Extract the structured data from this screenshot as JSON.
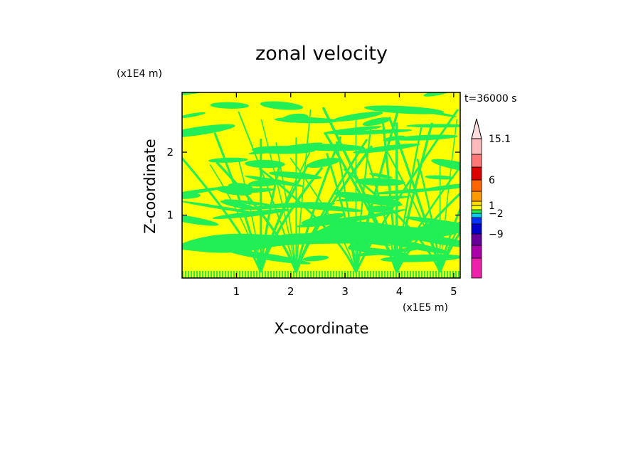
{
  "chart_data": {
    "type": "heatmap",
    "title": "zonal velocity",
    "xlabel": "X-coordinate",
    "ylabel": "Z-coordinate",
    "x_unit": "(x1E5 m)",
    "y_unit": "(x1E4 m)",
    "time_label": "t=36000 s",
    "xlim": [
      0,
      5.12
    ],
    "ylim": [
      0,
      2.95
    ],
    "x_ticks": [
      1,
      2,
      3,
      4,
      5
    ],
    "y_ticks": [
      1,
      2
    ],
    "field_colors": {
      "positive": "#ffff00",
      "near_zero": "#22ee55"
    },
    "colorbar": {
      "labels": [
        "15.1",
        "6",
        "1",
        "−2",
        "−9"
      ],
      "bins": [
        {
          "color": "#ee22aa"
        },
        {
          "color": "#aa00aa"
        },
        {
          "color": "#660099"
        },
        {
          "color": "#0000cc"
        },
        {
          "color": "#0033ff"
        },
        {
          "color": "#00ccee"
        },
        {
          "color": "#22ee55"
        },
        {
          "color": "#ffff00"
        },
        {
          "color": "#ffdd00"
        },
        {
          "color": "#ff9900"
        },
        {
          "color": "#ff6600"
        },
        {
          "color": "#dd0000"
        },
        {
          "color": "#ff7777"
        },
        {
          "color": "#ffbbbb"
        }
      ],
      "extend_top_color": "#ffdddd"
    }
  }
}
